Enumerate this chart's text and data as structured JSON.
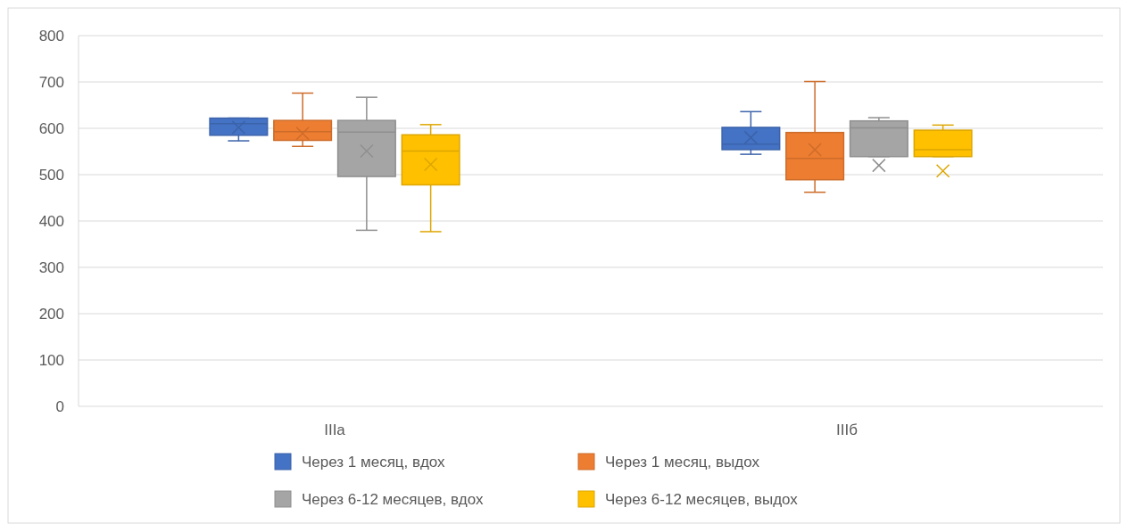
{
  "chart_data": {
    "type": "box",
    "categories": [
      "IIIa",
      "IIIб"
    ],
    "ylim": [
      0,
      800
    ],
    "yticks": [
      0,
      100,
      200,
      300,
      400,
      500,
      600,
      700,
      800
    ],
    "grid": "y",
    "legend": "bottom",
    "marker": "cross",
    "series": [
      {
        "name": "Через 1 месяц, вдох",
        "color": "#4472c4",
        "boxes": [
          {
            "low": 573,
            "q1": 585,
            "median": 610,
            "q3": 622,
            "high": 622,
            "mean": 602
          },
          {
            "low": 544,
            "q1": 554,
            "median": 566,
            "q3": 602,
            "high": 636,
            "mean": 580
          }
        ]
      },
      {
        "name": "Через 1 месяц, выдох",
        "color": "#ed7d31",
        "boxes": [
          {
            "low": 561,
            "q1": 574,
            "median": 593,
            "q3": 617,
            "high": 676,
            "mean": 589
          },
          {
            "low": 462,
            "q1": 489,
            "median": 535,
            "q3": 591,
            "high": 701,
            "mean": 554
          }
        ]
      },
      {
        "name": "Через 6-12 месяцев, вдох",
        "color": "#a5a5a5",
        "boxes": [
          {
            "low": 380,
            "q1": 496,
            "median": 592,
            "q3": 617,
            "high": 667,
            "mean": 551
          },
          {
            "low": 539,
            "q1": 539,
            "median": 601,
            "q3": 616,
            "high": 623,
            "mean": 520
          }
        ]
      },
      {
        "name": "Через 6-12 месяцев, выдох",
        "color": "#ffc000",
        "boxes": [
          {
            "low": 377,
            "q1": 478,
            "median": 551,
            "q3": 586,
            "high": 608,
            "mean": 522
          },
          {
            "low": 539,
            "q1": 539,
            "median": 554,
            "q3": 596,
            "high": 607,
            "mean": 508
          }
        ]
      }
    ]
  }
}
